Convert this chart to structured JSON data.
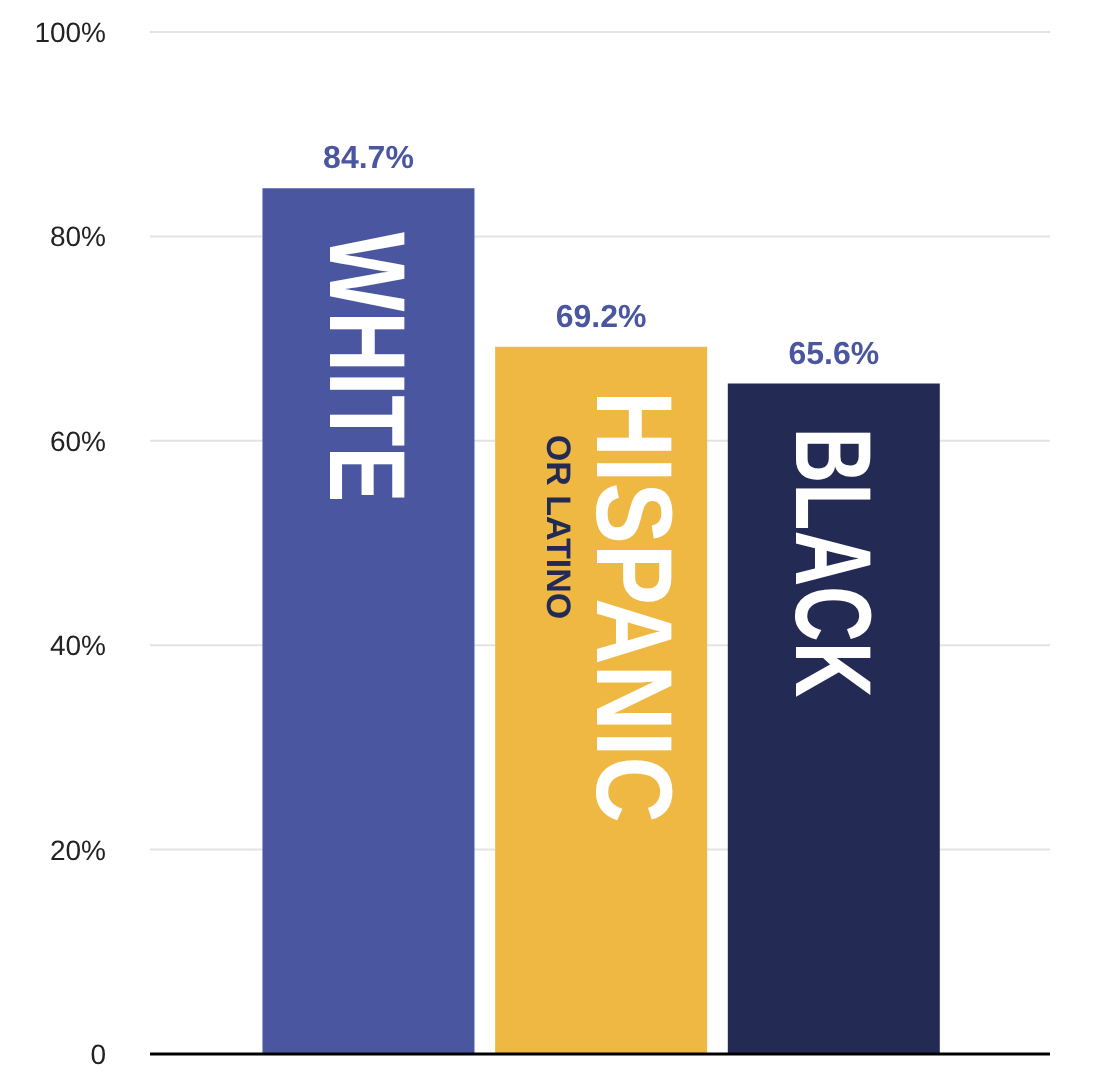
{
  "chart_data": {
    "type": "bar",
    "categories": [
      "WHITE",
      "HISPANIC OR LATINO",
      "BLACK"
    ],
    "values": [
      84.7,
      69.2,
      65.6
    ],
    "colors": [
      "#4a56a0",
      "#efb843",
      "#232b55"
    ],
    "value_labels": [
      "84.7%",
      "69.2%",
      "65.6%"
    ],
    "ylim": [
      0,
      100
    ],
    "yticks": [
      {
        "value": 0,
        "label": "0"
      },
      {
        "value": 20,
        "label": "20%"
      },
      {
        "value": 40,
        "label": "40%"
      },
      {
        "value": 60,
        "label": "60%"
      },
      {
        "value": 80,
        "label": "80%"
      },
      {
        "value": 100,
        "label": "100%"
      }
    ],
    "grid": "y"
  }
}
